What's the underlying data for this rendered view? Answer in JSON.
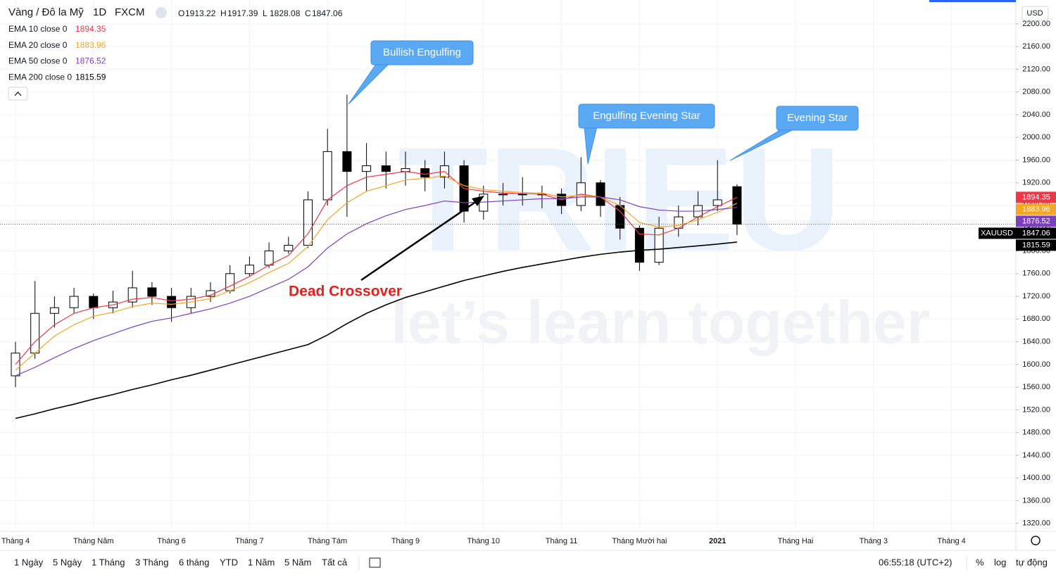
{
  "chart_data": {
    "type": "candlestick",
    "title": "Vàng / Đô la Mỹ",
    "interval": "1D",
    "source": "FXCM",
    "symbol": "XAUUSD",
    "currency": "USD",
    "ohlc_labels": [
      "O",
      "H",
      "L",
      "C"
    ],
    "categories": [
      "Tháng 4",
      null,
      null,
      null,
      "Tháng Năm",
      null,
      null,
      null,
      "Tháng 6",
      null,
      null,
      null,
      "Tháng 7",
      null,
      null,
      null,
      "Tháng Tám",
      null,
      null,
      null,
      "Tháng 9",
      null,
      null,
      null,
      "Tháng 10",
      null,
      null,
      null,
      "Tháng 11",
      null,
      null,
      null,
      "Tháng Mười hai",
      null,
      null,
      null,
      "2021",
      null,
      null,
      null,
      "Tháng Hai",
      null,
      null,
      null,
      "Tháng 3",
      null,
      null,
      null,
      "Tháng 4"
    ],
    "candles": {
      "open": [
        1580,
        1620,
        1690,
        1700,
        1720,
        1700,
        1710,
        1735,
        1720,
        1700,
        1720,
        1730,
        1760,
        1775,
        1800,
        1810,
        1890,
        1975,
        1940,
        1950,
        1940,
        1945,
        1930,
        1950,
        1870,
        1900,
        1900,
        1900,
        1900,
        1880,
        1920,
        1880,
        1840,
        1780,
        1840,
        1860,
        1880,
        1913.22,
        null,
        null,
        null,
        null,
        null,
        null,
        null,
        null,
        null,
        null,
        null
      ],
      "high": [
        1640,
        1747,
        1720,
        1735,
        1725,
        1730,
        1765,
        1745,
        1735,
        1735,
        1745,
        1775,
        1790,
        1815,
        1825,
        1905,
        2015,
        2075,
        1990,
        1975,
        1975,
        1960,
        1975,
        1960,
        1915,
        1920,
        1930,
        1915,
        1910,
        1965,
        1925,
        1895,
        1845,
        1860,
        1880,
        1905,
        1960,
        1917.39,
        null,
        null,
        null,
        null,
        null,
        null,
        null,
        null,
        null,
        null,
        null
      ],
      "low": [
        1560,
        1610,
        1665,
        1690,
        1680,
        1690,
        1700,
        1705,
        1675,
        1690,
        1710,
        1725,
        1755,
        1770,
        1795,
        1805,
        1880,
        1860,
        1905,
        1910,
        1915,
        1905,
        1910,
        1850,
        1855,
        1880,
        1880,
        1875,
        1865,
        1870,
        1860,
        1820,
        1765,
        1775,
        1825,
        1845,
        1870,
        1828.08,
        null,
        null,
        null,
        null,
        null,
        null,
        null,
        null,
        null,
        null,
        null
      ],
      "close": [
        1620,
        1690,
        1700,
        1720,
        1700,
        1710,
        1735,
        1720,
        1700,
        1720,
        1730,
        1760,
        1775,
        1800,
        1810,
        1890,
        1975,
        1940,
        1950,
        1940,
        1945,
        1930,
        1950,
        1870,
        1900,
        1900,
        1900,
        1900,
        1880,
        1920,
        1880,
        1840,
        1780,
        1840,
        1860,
        1880,
        1890,
        1847.06,
        null,
        null,
        null,
        null,
        null,
        null,
        null,
        null,
        null,
        null,
        null
      ]
    },
    "series": [
      {
        "name": "EMA 10 close 0",
        "color": "#f23645",
        "values": [
          1600,
          1640,
          1670,
          1690,
          1700,
          1705,
          1715,
          1718,
          1712,
          1715,
          1722,
          1738,
          1755,
          1775,
          1792,
          1830,
          1890,
          1915,
          1930,
          1935,
          1940,
          1935,
          1940,
          1910,
          1905,
          1902,
          1901,
          1900,
          1890,
          1900,
          1895,
          1870,
          1830,
          1828,
          1840,
          1860,
          1878,
          1894.35,
          null,
          null,
          null,
          null,
          null,
          null,
          null,
          null,
          null,
          null,
          null
        ]
      },
      {
        "name": "EMA 20 close 0",
        "color": "#f5a623",
        "values": [
          1590,
          1620,
          1650,
          1670,
          1685,
          1692,
          1702,
          1708,
          1706,
          1710,
          1716,
          1730,
          1744,
          1762,
          1778,
          1808,
          1855,
          1885,
          1905,
          1915,
          1925,
          1928,
          1932,
          1915,
          1908,
          1905,
          1903,
          1902,
          1895,
          1898,
          1895,
          1880,
          1850,
          1842,
          1845,
          1855,
          1868,
          1883.96,
          null,
          null,
          null,
          null,
          null,
          null,
          null,
          null,
          null,
          null,
          null
        ]
      },
      {
        "name": "EMA 50 close 0",
        "color": "#7e3fbf",
        "values": [
          1580,
          1595,
          1612,
          1628,
          1642,
          1654,
          1666,
          1676,
          1682,
          1690,
          1698,
          1708,
          1720,
          1735,
          1750,
          1772,
          1805,
          1830,
          1848,
          1862,
          1873,
          1880,
          1888,
          1885,
          1886,
          1888,
          1890,
          1892,
          1892,
          1895,
          1895,
          1890,
          1878,
          1872,
          1870,
          1870,
          1873,
          1876.52,
          null,
          null,
          null,
          null,
          null,
          null,
          null,
          null,
          null,
          null,
          null
        ]
      },
      {
        "name": "EMA 200 close 0",
        "color": "#000000",
        "values": [
          1505,
          1513,
          1522,
          1530,
          1539,
          1547,
          1556,
          1564,
          1573,
          1581,
          1590,
          1599,
          1608,
          1617,
          1626,
          1635,
          1652,
          1672,
          1690,
          1705,
          1718,
          1728,
          1738,
          1748,
          1756,
          1764,
          1771,
          1777,
          1783,
          1789,
          1794,
          1798,
          1801,
          1803,
          1806,
          1809,
          1812,
          1815.59,
          null,
          null,
          null,
          null,
          null,
          null,
          null,
          null,
          null,
          null,
          null
        ]
      }
    ],
    "ylim": [
      1306,
      2242
    ],
    "yticks": [
      {
        "value": 1320,
        "label": "1320.00"
      },
      {
        "value": 1360,
        "label": "1360.00"
      },
      {
        "value": 1400,
        "label": "1400.00"
      },
      {
        "value": 1440,
        "label": "1440.00"
      },
      {
        "value": 1480,
        "label": "1480.00"
      },
      {
        "value": 1520,
        "label": "1520.00"
      },
      {
        "value": 1560,
        "label": "1560.00"
      },
      {
        "value": 1600,
        "label": "1600.00"
      },
      {
        "value": 1640,
        "label": "1640.00"
      },
      {
        "value": 1680,
        "label": "1680.00"
      },
      {
        "value": 1720,
        "label": "1720.00"
      },
      {
        "value": 1760,
        "label": "1760.00"
      },
      {
        "value": 1800,
        "label": "1800.00"
      },
      {
        "value": 1840,
        "label": "1840.00"
      },
      {
        "value": 1880,
        "label": "1880.00"
      },
      {
        "value": 1920,
        "label": "1920.00"
      },
      {
        "value": 1960,
        "label": "1960.00"
      },
      {
        "value": 2000,
        "label": "2000.00"
      },
      {
        "value": 2040,
        "label": "2040.00"
      },
      {
        "value": 2080,
        "label": "2080.00"
      },
      {
        "value": 2120,
        "label": "2120.00"
      },
      {
        "value": 2160,
        "label": "2160.00"
      },
      {
        "value": 2200,
        "label": "2200.00"
      }
    ],
    "grid": true,
    "annotations": [
      {
        "text": "Bullish Engulfing"
      },
      {
        "text": "Engulfing Evening Star"
      },
      {
        "text": "Evening Star"
      },
      {
        "text": "Dead Crossover"
      }
    ],
    "watermark": [
      "TRIEU",
      "let’s learn together"
    ]
  },
  "toolbar": {
    "ranges": [
      "1 Ngày",
      "5 Ngày",
      "1 Tháng",
      "3 Tháng",
      "6 tháng",
      "YTD",
      "1 Năm",
      "5 Năm",
      "Tất cả"
    ],
    "time": "06:55:18 (UTC+2)",
    "options": [
      "%",
      "log",
      "tự động"
    ]
  }
}
